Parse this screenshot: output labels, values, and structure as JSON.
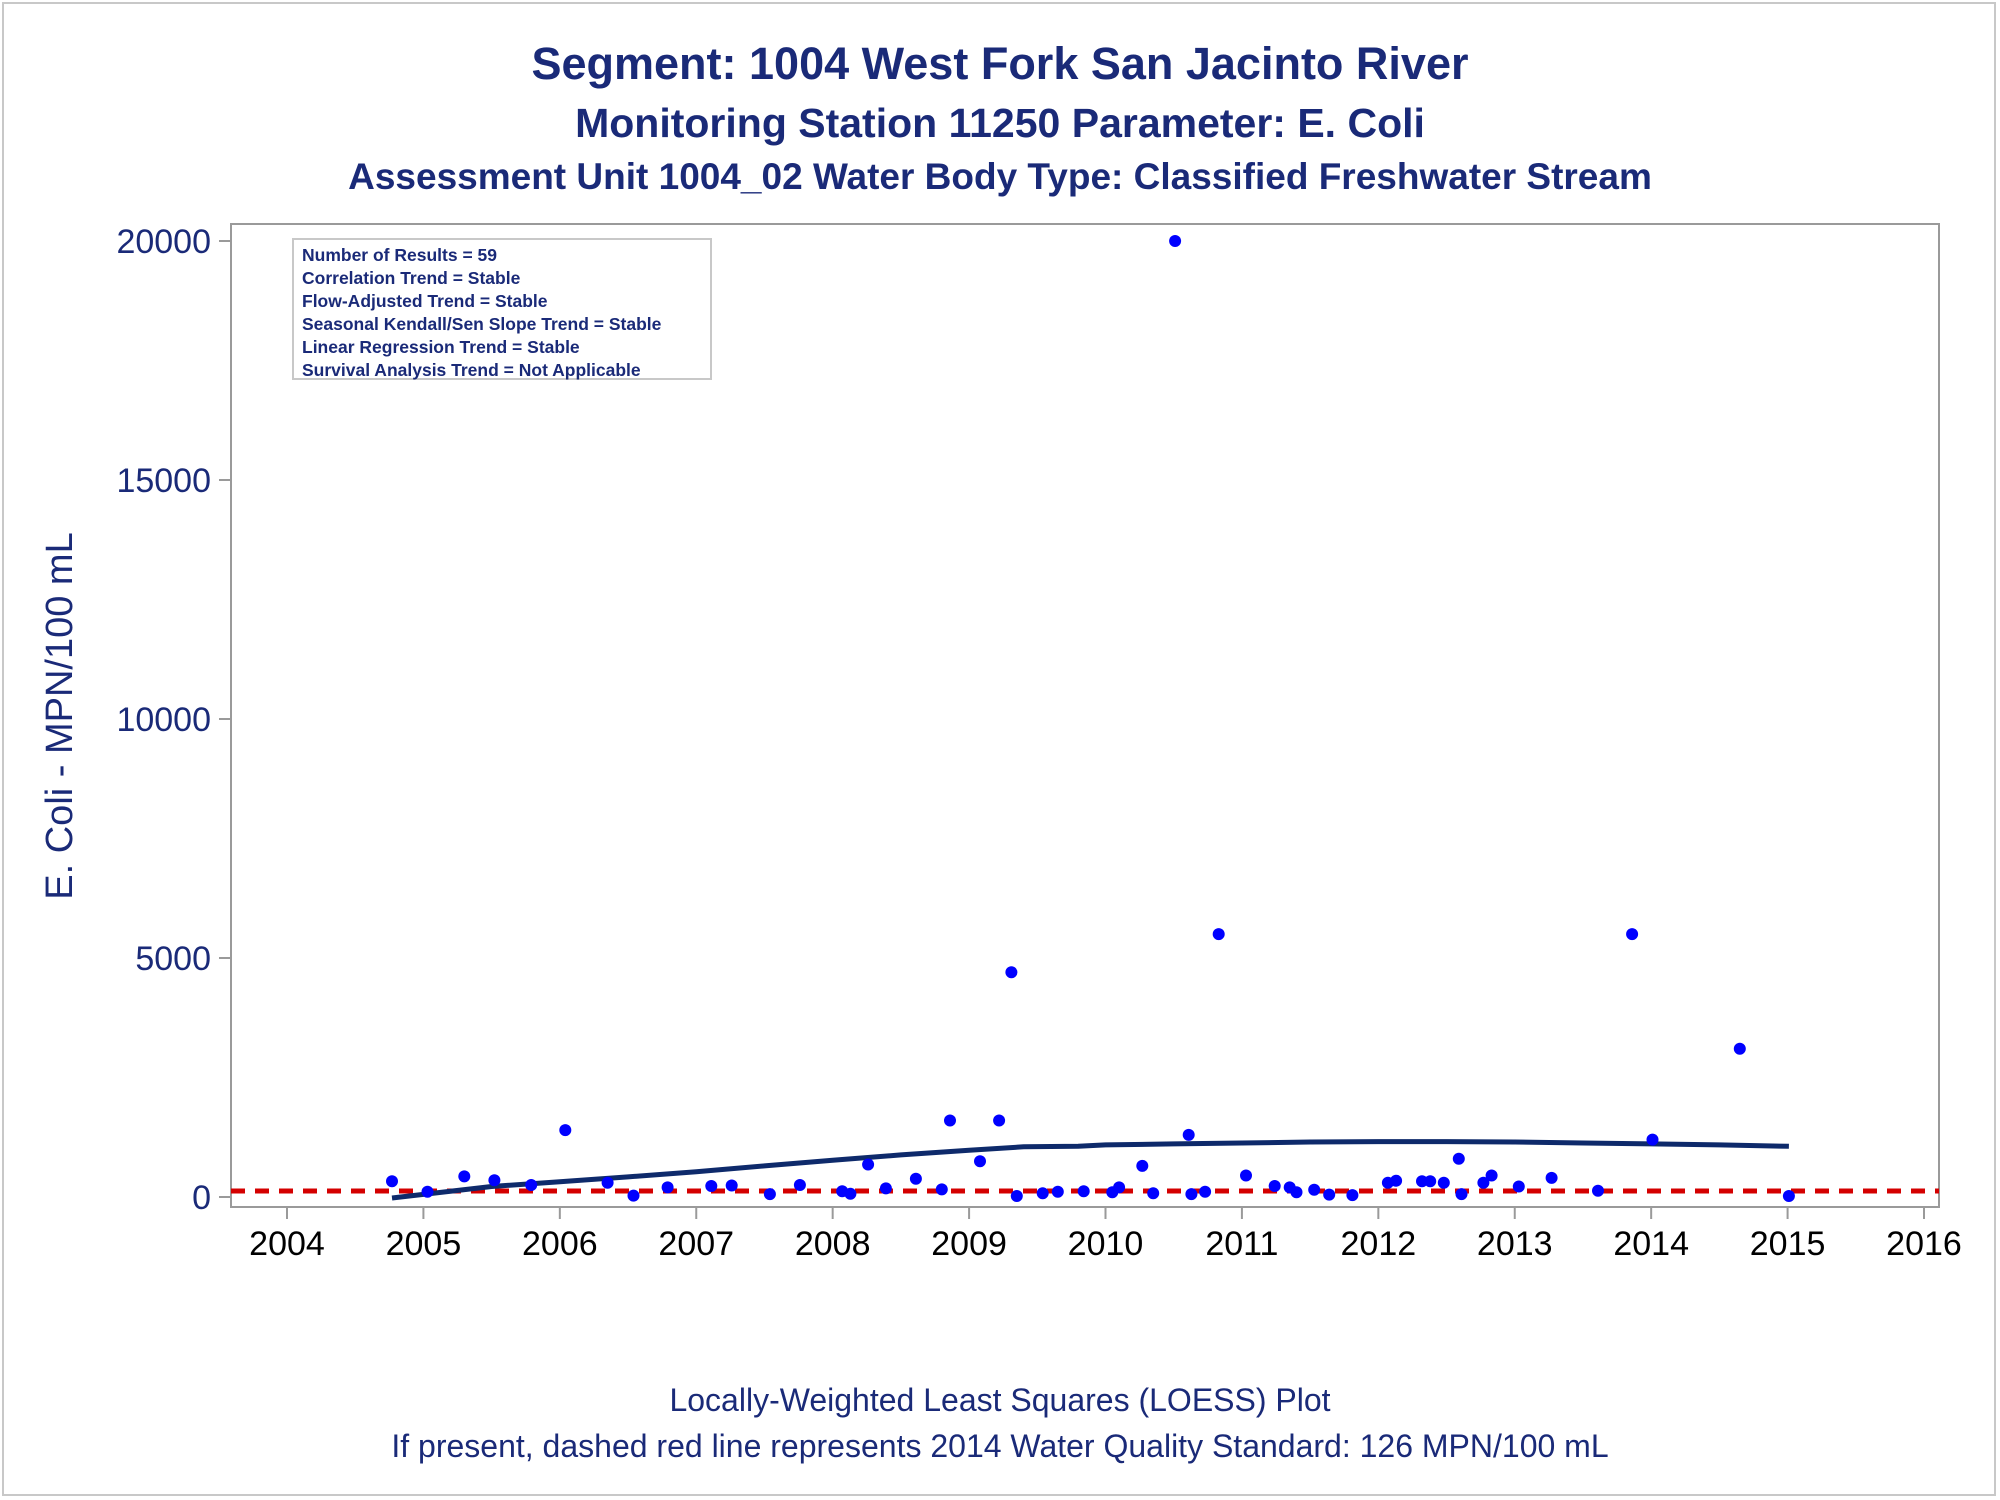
{
  "titles": {
    "line1": "Segment: 1004  West Fork San Jacinto River",
    "line2": "Monitoring Station 11250 Parameter: E. Coli",
    "line3": "Assessment Unit 1004_02   Water Body Type: Classified Freshwater Stream"
  },
  "footer": {
    "line1": "Locally-Weighted Least Squares (LOESS) Plot",
    "line2": "If present, dashed red line represents 2014 Water Quality Standard: 126 MPN/100 mL"
  },
  "stats": [
    "Number of Results = 59",
    "Correlation Trend = Stable",
    "Flow-Adjusted Trend = Stable",
    "Seasonal Kendall/Sen Slope Trend = Stable",
    "Linear Regression Trend = Stable",
    "Survival Analysis Trend = Not Applicable"
  ],
  "colors": {
    "text": "#1a2a78",
    "points": "#0000ff",
    "loess": "#0e2a6b",
    "standard": "#d40000",
    "axis": "#9a9a9a"
  },
  "chart_data": {
    "type": "scatter",
    "ylabel": "E. Coli - MPN/100 mL",
    "xlabel": "",
    "xlim": [
      2004,
      2016
    ],
    "ylim": [
      0,
      20000
    ],
    "x_ticks": [
      2004,
      2005,
      2006,
      2007,
      2008,
      2009,
      2010,
      2011,
      2012,
      2013,
      2014,
      2015,
      2016
    ],
    "y_ticks": [
      0,
      5000,
      10000,
      15000,
      20000
    ],
    "grid": false,
    "standard_line": {
      "value": 126,
      "style": "dashed"
    },
    "points": [
      {
        "x": 2004.77,
        "y": 330
      },
      {
        "x": 2005.03,
        "y": 110
      },
      {
        "x": 2005.3,
        "y": 430
      },
      {
        "x": 2005.52,
        "y": 350
      },
      {
        "x": 2005.79,
        "y": 250
      },
      {
        "x": 2006.04,
        "y": 1400
      },
      {
        "x": 2006.35,
        "y": 300
      },
      {
        "x": 2006.54,
        "y": 30
      },
      {
        "x": 2006.79,
        "y": 200
      },
      {
        "x": 2007.11,
        "y": 230
      },
      {
        "x": 2007.26,
        "y": 240
      },
      {
        "x": 2007.54,
        "y": 60
      },
      {
        "x": 2007.76,
        "y": 250
      },
      {
        "x": 2008.07,
        "y": 120
      },
      {
        "x": 2008.13,
        "y": 70
      },
      {
        "x": 2008.26,
        "y": 680
      },
      {
        "x": 2008.39,
        "y": 180
      },
      {
        "x": 2008.61,
        "y": 380
      },
      {
        "x": 2008.8,
        "y": 160
      },
      {
        "x": 2008.86,
        "y": 1600
      },
      {
        "x": 2009.08,
        "y": 750
      },
      {
        "x": 2009.22,
        "y": 1600
      },
      {
        "x": 2009.31,
        "y": 4700
      },
      {
        "x": 2009.35,
        "y": 20
      },
      {
        "x": 2009.54,
        "y": 80
      },
      {
        "x": 2009.65,
        "y": 110
      },
      {
        "x": 2009.84,
        "y": 120
      },
      {
        "x": 2010.05,
        "y": 100
      },
      {
        "x": 2010.1,
        "y": 200
      },
      {
        "x": 2010.27,
        "y": 650
      },
      {
        "x": 2010.35,
        "y": 80
      },
      {
        "x": 2010.51,
        "y": 20000
      },
      {
        "x": 2010.61,
        "y": 1300
      },
      {
        "x": 2010.63,
        "y": 60
      },
      {
        "x": 2010.73,
        "y": 110
      },
      {
        "x": 2010.83,
        "y": 5500
      },
      {
        "x": 2011.03,
        "y": 450
      },
      {
        "x": 2011.24,
        "y": 230
      },
      {
        "x": 2011.35,
        "y": 200
      },
      {
        "x": 2011.4,
        "y": 100
      },
      {
        "x": 2011.53,
        "y": 150
      },
      {
        "x": 2011.64,
        "y": 50
      },
      {
        "x": 2011.81,
        "y": 40
      },
      {
        "x": 2012.07,
        "y": 300
      },
      {
        "x": 2012.13,
        "y": 340
      },
      {
        "x": 2012.32,
        "y": 330
      },
      {
        "x": 2012.38,
        "y": 330
      },
      {
        "x": 2012.48,
        "y": 300
      },
      {
        "x": 2012.59,
        "y": 800
      },
      {
        "x": 2012.61,
        "y": 60
      },
      {
        "x": 2012.77,
        "y": 300
      },
      {
        "x": 2012.83,
        "y": 450
      },
      {
        "x": 2013.03,
        "y": 220
      },
      {
        "x": 2013.27,
        "y": 400
      },
      {
        "x": 2013.61,
        "y": 130
      },
      {
        "x": 2013.86,
        "y": 5500
      },
      {
        "x": 2014.01,
        "y": 1200
      },
      {
        "x": 2014.65,
        "y": 3100
      },
      {
        "x": 2015.01,
        "y": 20
      }
    ],
    "loess": [
      {
        "x": 2004.77,
        "y": -20
      },
      {
        "x": 2005.5,
        "y": 220
      },
      {
        "x": 2006.0,
        "y": 320
      },
      {
        "x": 2006.5,
        "y": 420
      },
      {
        "x": 2007.0,
        "y": 530
      },
      {
        "x": 2007.5,
        "y": 650
      },
      {
        "x": 2008.0,
        "y": 770
      },
      {
        "x": 2008.5,
        "y": 880
      },
      {
        "x": 2009.0,
        "y": 980
      },
      {
        "x": 2009.4,
        "y": 1050
      },
      {
        "x": 2009.8,
        "y": 1060
      },
      {
        "x": 2010.0,
        "y": 1090
      },
      {
        "x": 2010.5,
        "y": 1110
      },
      {
        "x": 2011.0,
        "y": 1130
      },
      {
        "x": 2011.5,
        "y": 1150
      },
      {
        "x": 2012.0,
        "y": 1160
      },
      {
        "x": 2012.5,
        "y": 1160
      },
      {
        "x": 2013.0,
        "y": 1150
      },
      {
        "x": 2013.5,
        "y": 1130
      },
      {
        "x": 2014.0,
        "y": 1110
      },
      {
        "x": 2014.5,
        "y": 1090
      },
      {
        "x": 2015.01,
        "y": 1060
      }
    ]
  }
}
